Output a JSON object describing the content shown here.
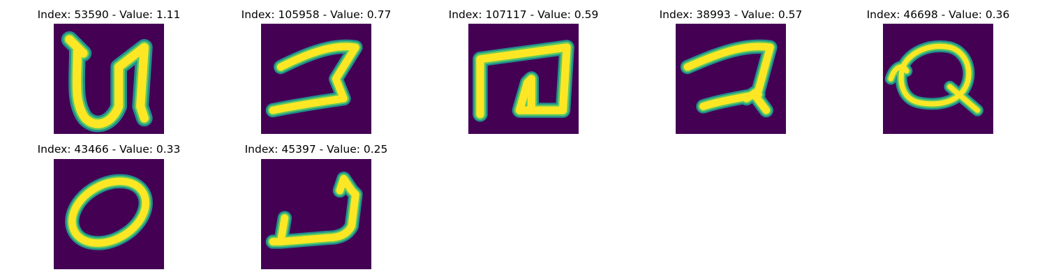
{
  "colors": {
    "background": "#440154",
    "stroke_outer": "#21908d",
    "stroke_mid": "#5ec962",
    "stroke_core": "#fde725"
  },
  "panels": [
    {
      "title": "Index: 53590 - Value: 1.11",
      "glyph": "U-shape-glyph"
    },
    {
      "title": "Index: 105958 - Value: 0.77",
      "glyph": "reversed-z-glyph"
    },
    {
      "title": "Index: 107117 - Value: 0.59",
      "glyph": "square-spiral-glyph"
    },
    {
      "title": "Index: 38993 - Value: 0.57",
      "glyph": "reversed-z-tail-glyph"
    },
    {
      "title": "Index: 46698 - Value: 0.36",
      "glyph": "Q-shape-glyph"
    },
    {
      "title": "Index: 43466 - Value: 0.33",
      "glyph": "O-shape-glyph"
    },
    {
      "title": "Index: 45397 - Value: 0.25",
      "glyph": "hook-glyph"
    }
  ]
}
